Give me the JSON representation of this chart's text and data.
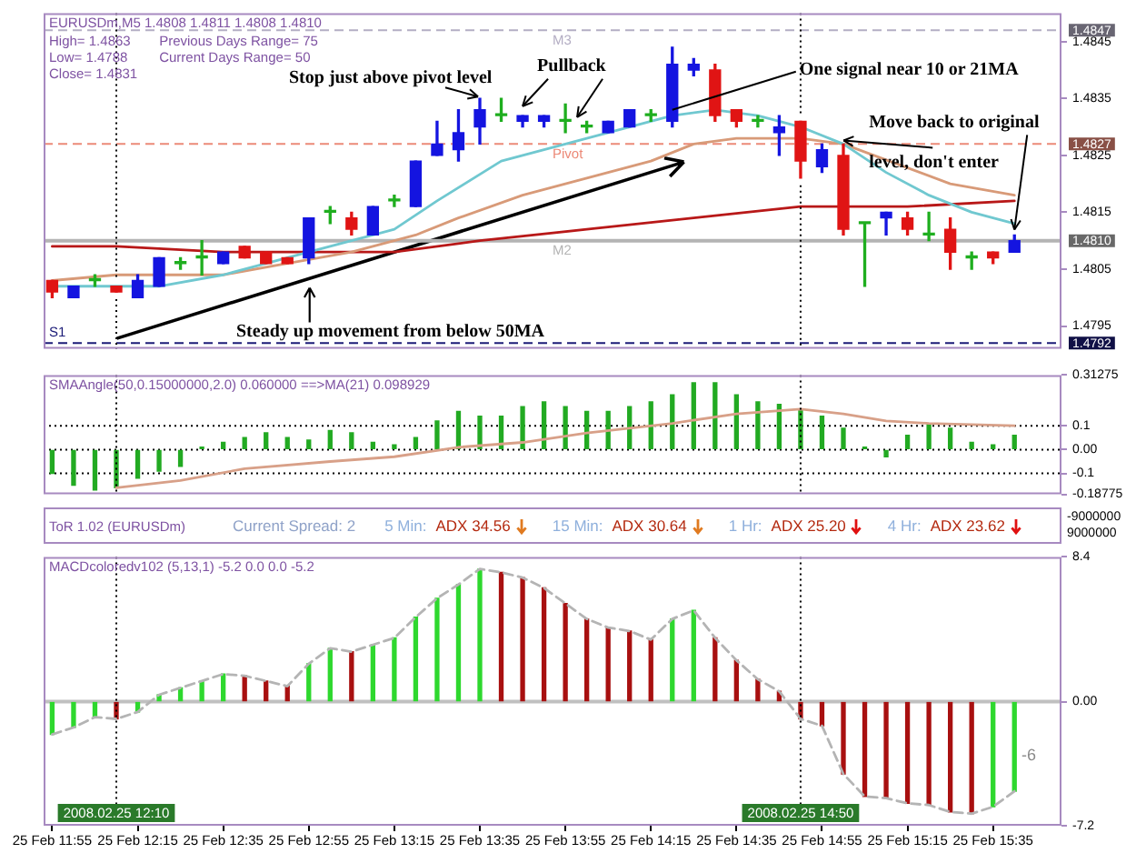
{
  "chart_data": [
    {
      "type": "candlestick",
      "title": "EURUSDm,M5 1.4808 1.4811 1.4808 1.4810",
      "x": [
        "2008-02-25T11:55",
        "2008-02-25T12:00",
        "2008-02-25T12:05",
        "2008-02-25T12:10",
        "2008-02-25T12:15",
        "2008-02-25T12:20",
        "2008-02-25T12:25",
        "2008-02-25T12:30",
        "2008-02-25T12:35",
        "2008-02-25T12:40",
        "2008-02-25T12:45",
        "2008-02-25T12:50",
        "2008-02-25T12:55",
        "2008-02-25T13:00",
        "2008-02-25T13:05",
        "2008-02-25T13:10",
        "2008-02-25T13:15",
        "2008-02-25T13:20",
        "2008-02-25T13:25",
        "2008-02-25T13:30",
        "2008-02-25T13:35",
        "2008-02-25T13:40",
        "2008-02-25T13:45",
        "2008-02-25T13:50",
        "2008-02-25T13:55",
        "2008-02-25T14:00",
        "2008-02-25T14:05",
        "2008-02-25T14:10",
        "2008-02-25T14:15",
        "2008-02-25T14:20",
        "2008-02-25T14:25",
        "2008-02-25T14:30",
        "2008-02-25T14:35",
        "2008-02-25T14:40",
        "2008-02-25T14:45",
        "2008-02-25T14:50",
        "2008-02-25T14:55",
        "2008-02-25T15:00",
        "2008-02-25T15:05",
        "2008-02-25T15:10",
        "2008-02-25T15:15",
        "2008-02-25T15:20",
        "2008-02-25T15:25",
        "2008-02-25T15:30",
        "2008-02-25T15:35",
        "2008-02-25T15:40"
      ],
      "ohlc": [
        [
          1.4803,
          1.4803,
          1.48,
          1.4801
        ],
        [
          1.48,
          1.4802,
          1.48,
          1.4802
        ],
        [
          1.4803,
          1.4804,
          1.4802,
          1.4803
        ],
        [
          1.4802,
          1.4802,
          1.4801,
          1.4801
        ],
        [
          1.48,
          1.4804,
          1.48,
          1.4803
        ],
        [
          1.4802,
          1.4807,
          1.4802,
          1.4807
        ],
        [
          1.4806,
          1.4807,
          1.4805,
          1.4806
        ],
        [
          1.4807,
          1.481,
          1.4804,
          1.4807
        ],
        [
          1.4806,
          1.4808,
          1.4806,
          1.4808
        ],
        [
          1.4809,
          1.4809,
          1.4807,
          1.4807
        ],
        [
          1.4808,
          1.4808,
          1.4806,
          1.4806
        ],
        [
          1.4807,
          1.4807,
          1.4806,
          1.4806
        ],
        [
          1.4807,
          1.4814,
          1.4806,
          1.4814
        ],
        [
          1.4815,
          1.4816,
          1.4813,
          1.4815
        ],
        [
          1.4814,
          1.4815,
          1.4811,
          1.4812
        ],
        [
          1.4811,
          1.4816,
          1.4811,
          1.4816
        ],
        [
          1.4817,
          1.4818,
          1.4816,
          1.4817
        ],
        [
          1.4816,
          1.4824,
          1.4816,
          1.4824
        ],
        [
          1.4825,
          1.4831,
          1.4825,
          1.4827
        ],
        [
          1.4826,
          1.4833,
          1.4824,
          1.4829
        ],
        [
          1.483,
          1.4835,
          1.4827,
          1.4833
        ],
        [
          1.4832,
          1.4835,
          1.4831,
          1.4832
        ],
        [
          1.4831,
          1.4832,
          1.483,
          1.4832
        ],
        [
          1.4831,
          1.4832,
          1.483,
          1.4832
        ],
        [
          1.4831,
          1.4834,
          1.4829,
          1.4831
        ],
        [
          1.483,
          1.4831,
          1.4829,
          1.483
        ],
        [
          1.4829,
          1.4831,
          1.4829,
          1.4831
        ],
        [
          1.483,
          1.4833,
          1.483,
          1.4833
        ],
        [
          1.4832,
          1.4833,
          1.4831,
          1.4832
        ],
        [
          1.4831,
          1.4844,
          1.483,
          1.4841
        ],
        [
          1.484,
          1.4842,
          1.4839,
          1.4841
        ],
        [
          1.484,
          1.4841,
          1.4831,
          1.4832
        ],
        [
          1.4833,
          1.4833,
          1.483,
          1.4831
        ],
        [
          1.4831,
          1.4832,
          1.483,
          1.4831
        ],
        [
          1.4829,
          1.4832,
          1.4825,
          1.483
        ],
        [
          1.4831,
          1.4831,
          1.4821,
          1.4824
        ],
        [
          1.4823,
          1.4827,
          1.4822,
          1.4826
        ],
        [
          1.4825,
          1.4827,
          1.4811,
          1.4812
        ],
        [
          1.4813,
          1.4813,
          1.4802,
          1.4813
        ],
        [
          1.4814,
          1.4815,
          1.4811,
          1.4815
        ],
        [
          1.4814,
          1.4815,
          1.4811,
          1.4812
        ],
        [
          1.4811,
          1.4815,
          1.481,
          1.4811
        ],
        [
          1.4812,
          1.4814,
          1.4805,
          1.4808
        ],
        [
          1.4807,
          1.4808,
          1.4805,
          1.4807
        ],
        [
          1.4808,
          1.4808,
          1.4806,
          1.4807
        ],
        [
          1.4808,
          1.4811,
          1.4808,
          1.481
        ]
      ],
      "colors": [
        "#e01414",
        "#1414e0",
        "#1fae1f",
        "#e01414",
        "#1414e0",
        "#1414e0",
        "#1fae1f",
        "#1fae1f",
        "#1414e0",
        "#e01414",
        "#e01414",
        "#e01414",
        "#1414e0",
        "#1fae1f",
        "#e01414",
        "#1414e0",
        "#1fae1f",
        "#1414e0",
        "#1414e0",
        "#1414e0",
        "#1414e0",
        "#1fae1f",
        "#1414e0",
        "#1414e0",
        "#1fae1f",
        "#1fae1f",
        "#1414e0",
        "#1414e0",
        "#1fae1f",
        "#1414e0",
        "#1414e0",
        "#e01414",
        "#e01414",
        "#1fae1f",
        "#1414e0",
        "#e01414",
        "#1414e0",
        "#e01414",
        "#1fae1f",
        "#1414e0",
        "#e01414",
        "#1fae1f",
        "#e01414",
        "#1fae1f",
        "#e01414",
        "#1414e0"
      ],
      "series": [
        {
          "type": "line",
          "color": "#70c8d0",
          "x": [
            "2008-02-25T11:55",
            "2008-02-25T12:10",
            "2008-02-25T12:20",
            "2008-02-25T12:35",
            "2008-02-25T12:55",
            "2008-02-25T13:05",
            "2008-02-25T13:15",
            "2008-02-25T13:25",
            "2008-02-25T13:40",
            "2008-02-25T13:55",
            "2008-02-25T14:10",
            "2008-02-25T14:20",
            "2008-02-25T14:30",
            "2008-02-25T14:40",
            "2008-02-25T14:50",
            "2008-02-25T15:00",
            "2008-02-25T15:10",
            "2008-02-25T15:20",
            "2008-02-25T15:30",
            "2008-02-25T15:40"
          ],
          "values": [
            1.4802,
            1.4802,
            1.4802,
            1.4804,
            1.4808,
            1.481,
            1.4812,
            1.4817,
            1.4824,
            1.4827,
            1.483,
            1.4832,
            1.4833,
            1.4832,
            1.483,
            1.4827,
            1.4822,
            1.4818,
            1.4815,
            1.4813
          ]
        },
        {
          "type": "line",
          "color": "#d89a78",
          "x": [
            "2008-02-25T11:55",
            "2008-02-25T12:10",
            "2008-02-25T12:35",
            "2008-02-25T12:50",
            "2008-02-25T13:05",
            "2008-02-25T13:20",
            "2008-02-25T13:30",
            "2008-02-25T13:45",
            "2008-02-25T14:00",
            "2008-02-25T14:15",
            "2008-02-25T14:25",
            "2008-02-25T14:35",
            "2008-02-25T14:50",
            "2008-02-25T15:00",
            "2008-02-25T15:25",
            "2008-02-25T15:40"
          ],
          "values": [
            1.4803,
            1.4804,
            1.4804,
            1.4806,
            1.4808,
            1.4811,
            1.4814,
            1.4818,
            1.4821,
            1.4824,
            1.4827,
            1.4828,
            1.4828,
            1.4827,
            1.482,
            1.4818
          ]
        },
        {
          "type": "line",
          "color": "#b81818",
          "x": [
            "2008-02-25T11:55",
            "2008-02-25T12:10",
            "2008-02-25T12:35",
            "2008-02-25T12:55",
            "2008-02-25T13:15",
            "2008-02-25T13:35",
            "2008-02-25T14:00",
            "2008-02-25T14:25",
            "2008-02-25T14:50",
            "2008-02-25T15:15",
            "2008-02-25T15:40"
          ],
          "values": [
            1.4809,
            1.4809,
            1.4808,
            1.4808,
            1.4808,
            1.481,
            1.4812,
            1.4814,
            1.4816,
            1.4816,
            1.4817
          ]
        }
      ],
      "xlim": [
        "2008-02-25T11:53",
        "2008-02-25T15:51"
      ],
      "ylim": [
        1.4791,
        1.485
      ],
      "yticks": [
        1.4795,
        1.4805,
        1.4815,
        1.4825,
        1.4835,
        1.4845
      ],
      "ref_lines": [
        {
          "axis": "y",
          "value": 1.4847,
          "label": "M3",
          "color": "#b4aec4",
          "line_style": "dashed"
        },
        {
          "axis": "y",
          "value": 1.4827,
          "label": "Pivot",
          "color": "#ec8a78",
          "line_style": "dashed"
        },
        {
          "axis": "y",
          "value": 1.481,
          "label": "M2",
          "color": "#b4b4b4"
        },
        {
          "axis": "y",
          "value": 1.4792,
          "label": "S1",
          "color": "#1c1c78",
          "line_style": "dashed"
        },
        {
          "axis": "x",
          "value": "2008-02-25T12:10",
          "color": "#000000",
          "line_style": "dotted"
        },
        {
          "axis": "x",
          "value": "2008-02-25T14:50",
          "color": "#000000",
          "line_style": "dotted"
        }
      ],
      "annotations": [
        "High= 1.4863",
        "Previous Days Range= 75",
        "Low= 1.4788",
        "Current Days Range= 50",
        "Close= 1.4831",
        {
          "text": "Stop just above pivot level",
          "x": "2008-02-25T13:35",
          "y": 1.4835
        },
        {
          "text": "Pullback",
          "x": "2008-02-25T13:45",
          "y": 1.4833
        },
        {
          "text": "One signal near 10 or 21MA",
          "x": "2008-02-25T14:20",
          "y": 1.4833
        },
        {
          "text": "Move back to original level, don't enter",
          "x": "2008-02-25T15:40",
          "y": 1.4811
        },
        "Steady up movement from below 50MA",
        "1.4847",
        "1.4827",
        "1.4810",
        "1.4792"
      ],
      "tick_labels": "y"
    },
    {
      "type": "bar",
      "title": "SMAAngle(50,0.15000000,2.0) 0.060000 ==>MA(21) 0.098929",
      "x": [
        "2008-02-25T11:55",
        "2008-02-25T12:00",
        "2008-02-25T12:05",
        "2008-02-25T12:10",
        "2008-02-25T12:15",
        "2008-02-25T12:20",
        "2008-02-25T12:25",
        "2008-02-25T12:30",
        "2008-02-25T12:35",
        "2008-02-25T12:40",
        "2008-02-25T12:45",
        "2008-02-25T12:50",
        "2008-02-25T12:55",
        "2008-02-25T13:00",
        "2008-02-25T13:05",
        "2008-02-25T13:10",
        "2008-02-25T13:15",
        "2008-02-25T13:20",
        "2008-02-25T13:25",
        "2008-02-25T13:30",
        "2008-02-25T13:35",
        "2008-02-25T13:40",
        "2008-02-25T13:45",
        "2008-02-25T13:50",
        "2008-02-25T13:55",
        "2008-02-25T14:00",
        "2008-02-25T14:05",
        "2008-02-25T14:10",
        "2008-02-25T14:15",
        "2008-02-25T14:20",
        "2008-02-25T14:25",
        "2008-02-25T14:30",
        "2008-02-25T14:35",
        "2008-02-25T14:40",
        "2008-02-25T14:45",
        "2008-02-25T14:50",
        "2008-02-25T14:55",
        "2008-02-25T15:00",
        "2008-02-25T15:05",
        "2008-02-25T15:10",
        "2008-02-25T15:15",
        "2008-02-25T15:20",
        "2008-02-25T15:25",
        "2008-02-25T15:30",
        "2008-02-25T15:35",
        "2008-02-25T15:40"
      ],
      "series": [
        {
          "color": "#22aa22",
          "values": [
            -0.1,
            -0.15,
            -0.17,
            -0.16,
            -0.12,
            -0.09,
            -0.07,
            0.01,
            0.03,
            0.05,
            0.07,
            0.05,
            0.04,
            0.08,
            0.07,
            0.03,
            0.02,
            0.05,
            0.12,
            0.16,
            0.14,
            0.14,
            0.18,
            0.2,
            0.18,
            0.16,
            0.16,
            0.18,
            0.2,
            0.23,
            0.28,
            0.28,
            0.23,
            0.2,
            0.19,
            0.17,
            0.14,
            0.09,
            0.01,
            -0.03,
            0.06,
            0.11,
            0.09,
            0.03,
            0.02,
            0.06
          ]
        },
        {
          "type": "line",
          "color": "#d8a088",
          "x": [
            "2008-02-25T12:10",
            "2008-02-25T12:25",
            "2008-02-25T12:40",
            "2008-02-25T13:00",
            "2008-02-25T13:15",
            "2008-02-25T13:30",
            "2008-02-25T13:45",
            "2008-02-25T14:00",
            "2008-02-25T14:20",
            "2008-02-25T14:35",
            "2008-02-25T14:50",
            "2008-02-25T15:00",
            "2008-02-25T15:10",
            "2008-02-25T15:20",
            "2008-02-25T15:40"
          ],
          "values": [
            -0.16,
            -0.13,
            -0.08,
            -0.05,
            -0.03,
            0.01,
            0.03,
            0.07,
            0.11,
            0.15,
            0.17,
            0.15,
            0.12,
            0.11,
            0.1
          ]
        }
      ],
      "xlim": [
        "2008-02-25T11:53",
        "2008-02-25T15:51"
      ],
      "ylim": [
        -0.18775,
        0.31275
      ],
      "yticks": [
        0.31275,
        0.1,
        {
          "value": 0,
          "label": "0.00"
        },
        -0.1,
        -0.18775
      ],
      "ref_lines": [
        {
          "axis": "y",
          "value": 0.1,
          "color": "#000000",
          "line_style": "dotted"
        },
        {
          "axis": "y",
          "value": 0,
          "color": "#000000",
          "line_style": "dotted"
        },
        {
          "axis": "y",
          "value": -0.1,
          "color": "#000000",
          "line_style": "dotted"
        },
        {
          "axis": "x",
          "value": "2008-02-25T12:10",
          "color": "#000000",
          "line_style": "dotted"
        },
        {
          "axis": "x",
          "value": "2008-02-25T14:50",
          "color": "#000000",
          "line_style": "dotted"
        }
      ],
      "tick_labels": "y"
    },
    {
      "type": "other",
      "title": "ToR 1.02 (EURUSDm)",
      "annotations": [
        "Current Spread: 2",
        "5 Min:",
        "ADX 34.56",
        "15 Min:",
        "ADX 30.64",
        "1 Hr:",
        "ADX 25.20",
        "4 Hr:",
        "ADX 23.62",
        "-9000000",
        "9000000"
      ]
    },
    {
      "type": "bar",
      "title": "MACDcoloredv102 (5,13,1) -5.2 0.0 0.0 -5.2",
      "x": [
        "2008-02-25T11:55",
        "2008-02-25T12:00",
        "2008-02-25T12:05",
        "2008-02-25T12:10",
        "2008-02-25T12:15",
        "2008-02-25T12:20",
        "2008-02-25T12:25",
        "2008-02-25T12:30",
        "2008-02-25T12:35",
        "2008-02-25T12:40",
        "2008-02-25T12:45",
        "2008-02-25T12:50",
        "2008-02-25T12:55",
        "2008-02-25T13:00",
        "2008-02-25T13:05",
        "2008-02-25T13:10",
        "2008-02-25T13:15",
        "2008-02-25T13:20",
        "2008-02-25T13:25",
        "2008-02-25T13:30",
        "2008-02-25T13:35",
        "2008-02-25T13:40",
        "2008-02-25T13:45",
        "2008-02-25T13:50",
        "2008-02-25T13:55",
        "2008-02-25T14:00",
        "2008-02-25T14:05",
        "2008-02-25T14:10",
        "2008-02-25T14:15",
        "2008-02-25T14:20",
        "2008-02-25T14:25",
        "2008-02-25T14:30",
        "2008-02-25T14:35",
        "2008-02-25T14:40",
        "2008-02-25T14:45",
        "2008-02-25T14:50",
        "2008-02-25T14:55",
        "2008-02-25T15:00",
        "2008-02-25T15:05",
        "2008-02-25T15:10",
        "2008-02-25T15:15",
        "2008-02-25T15:20",
        "2008-02-25T15:25",
        "2008-02-25T15:30",
        "2008-02-25T15:35",
        "2008-02-25T15:40"
      ],
      "series": [
        {
          "colors": [
            "#2ed82e",
            "#2ed82e",
            "#2ed82e",
            "#a81010",
            "#2ed82e",
            "#2ed82e",
            "#2ed82e",
            "#2ed82e",
            "#2ed82e",
            "#a81010",
            "#a81010",
            "#a81010",
            "#2ed82e",
            "#2ed82e",
            "#a81010",
            "#2ed82e",
            "#2ed82e",
            "#2ed82e",
            "#2ed82e",
            "#2ed82e",
            "#2ed82e",
            "#a81010",
            "#a81010",
            "#a81010",
            "#a81010",
            "#a81010",
            "#a81010",
            "#a81010",
            "#a81010",
            "#2ed82e",
            "#2ed82e",
            "#a81010",
            "#a81010",
            "#a81010",
            "#a81010",
            "#a81010",
            "#a81010",
            "#a81010",
            "#a81010",
            "#a81010",
            "#a81010",
            "#a81010",
            "#a81010",
            "#a81010",
            "#2ed82e",
            "#2ed82e"
          ],
          "values": [
            -1.9,
            -1.5,
            -0.9,
            -1.0,
            -0.6,
            0.4,
            0.8,
            1.2,
            1.6,
            1.5,
            1.2,
            0.9,
            2.2,
            3.1,
            2.9,
            3.3,
            3.7,
            4.9,
            6.0,
            6.8,
            7.7,
            7.5,
            7.2,
            6.6,
            5.7,
            4.8,
            4.3,
            4.1,
            3.6,
            4.8,
            5.3,
            3.7,
            2.4,
            1.3,
            0.6,
            -1.0,
            -1.4,
            -4.2,
            -5.5,
            -5.6,
            -5.9,
            -6.0,
            -6.4,
            -6.5,
            -6.1,
            -5.2
          ]
        },
        {
          "type": "line",
          "color": "#b4b4b4",
          "line_style": "dashed",
          "values": [
            -1.9,
            -1.5,
            -0.9,
            -1.0,
            -0.6,
            0.4,
            0.8,
            1.2,
            1.6,
            1.5,
            1.2,
            0.9,
            2.2,
            3.1,
            2.9,
            3.3,
            3.7,
            4.9,
            6.0,
            6.8,
            7.7,
            7.5,
            7.2,
            6.6,
            5.7,
            4.8,
            4.3,
            4.1,
            3.6,
            4.8,
            5.3,
            3.7,
            2.4,
            1.3,
            0.6,
            -1.0,
            -1.4,
            -4.2,
            -5.5,
            -5.6,
            -5.9,
            -6.0,
            -6.4,
            -6.5,
            -6.1,
            -5.2
          ]
        }
      ],
      "xlim": [
        "2008-02-25T11:53",
        "2008-02-25T15:51"
      ],
      "ylim": [
        -7.2,
        8.4
      ],
      "yticks": [
        8.4,
        {
          "value": 0,
          "label": "0.00"
        },
        -7.2
      ],
      "xticks": [
        {
          "value": "2008-02-25T11:55",
          "label": "25 Feb 11:55"
        },
        {
          "value": "2008-02-25T12:15",
          "label": "25 Feb 12:15"
        },
        {
          "value": "2008-02-25T12:35",
          "label": "25 Feb 12:35"
        },
        {
          "value": "2008-02-25T12:55",
          "label": "25 Feb 12:55"
        },
        {
          "value": "2008-02-25T13:15",
          "label": "25 Feb 13:15"
        },
        {
          "value": "2008-02-25T13:35",
          "label": "25 Feb 13:35"
        },
        {
          "value": "2008-02-25T13:55",
          "label": "25 Feb 13:55"
        },
        {
          "value": "2008-02-25T14:15",
          "label": "25 Feb 14:15"
        },
        {
          "value": "2008-02-25T14:35",
          "label": "25 Feb 14:35"
        },
        {
          "value": "2008-02-25T14:55",
          "label": "25 Feb 14:55"
        },
        {
          "value": "2008-02-25T15:15",
          "label": "25 Feb 15:15"
        },
        {
          "value": "2008-02-25T15:35",
          "label": "25 Feb 15:35"
        }
      ],
      "ref_lines": [
        {
          "axis": "y",
          "value": 0,
          "color": "#c0c0c0"
        },
        {
          "axis": "x",
          "value": "2008-02-25T12:10",
          "label": "2008.02.25 12:10",
          "color": "#000000",
          "line_style": "dotted"
        },
        {
          "axis": "x",
          "value": "2008-02-25T14:50",
          "label": "2008.02.25 14:50",
          "color": "#000000",
          "line_style": "dotted"
        }
      ],
      "annotations": [
        "-6"
      ]
    }
  ]
}
